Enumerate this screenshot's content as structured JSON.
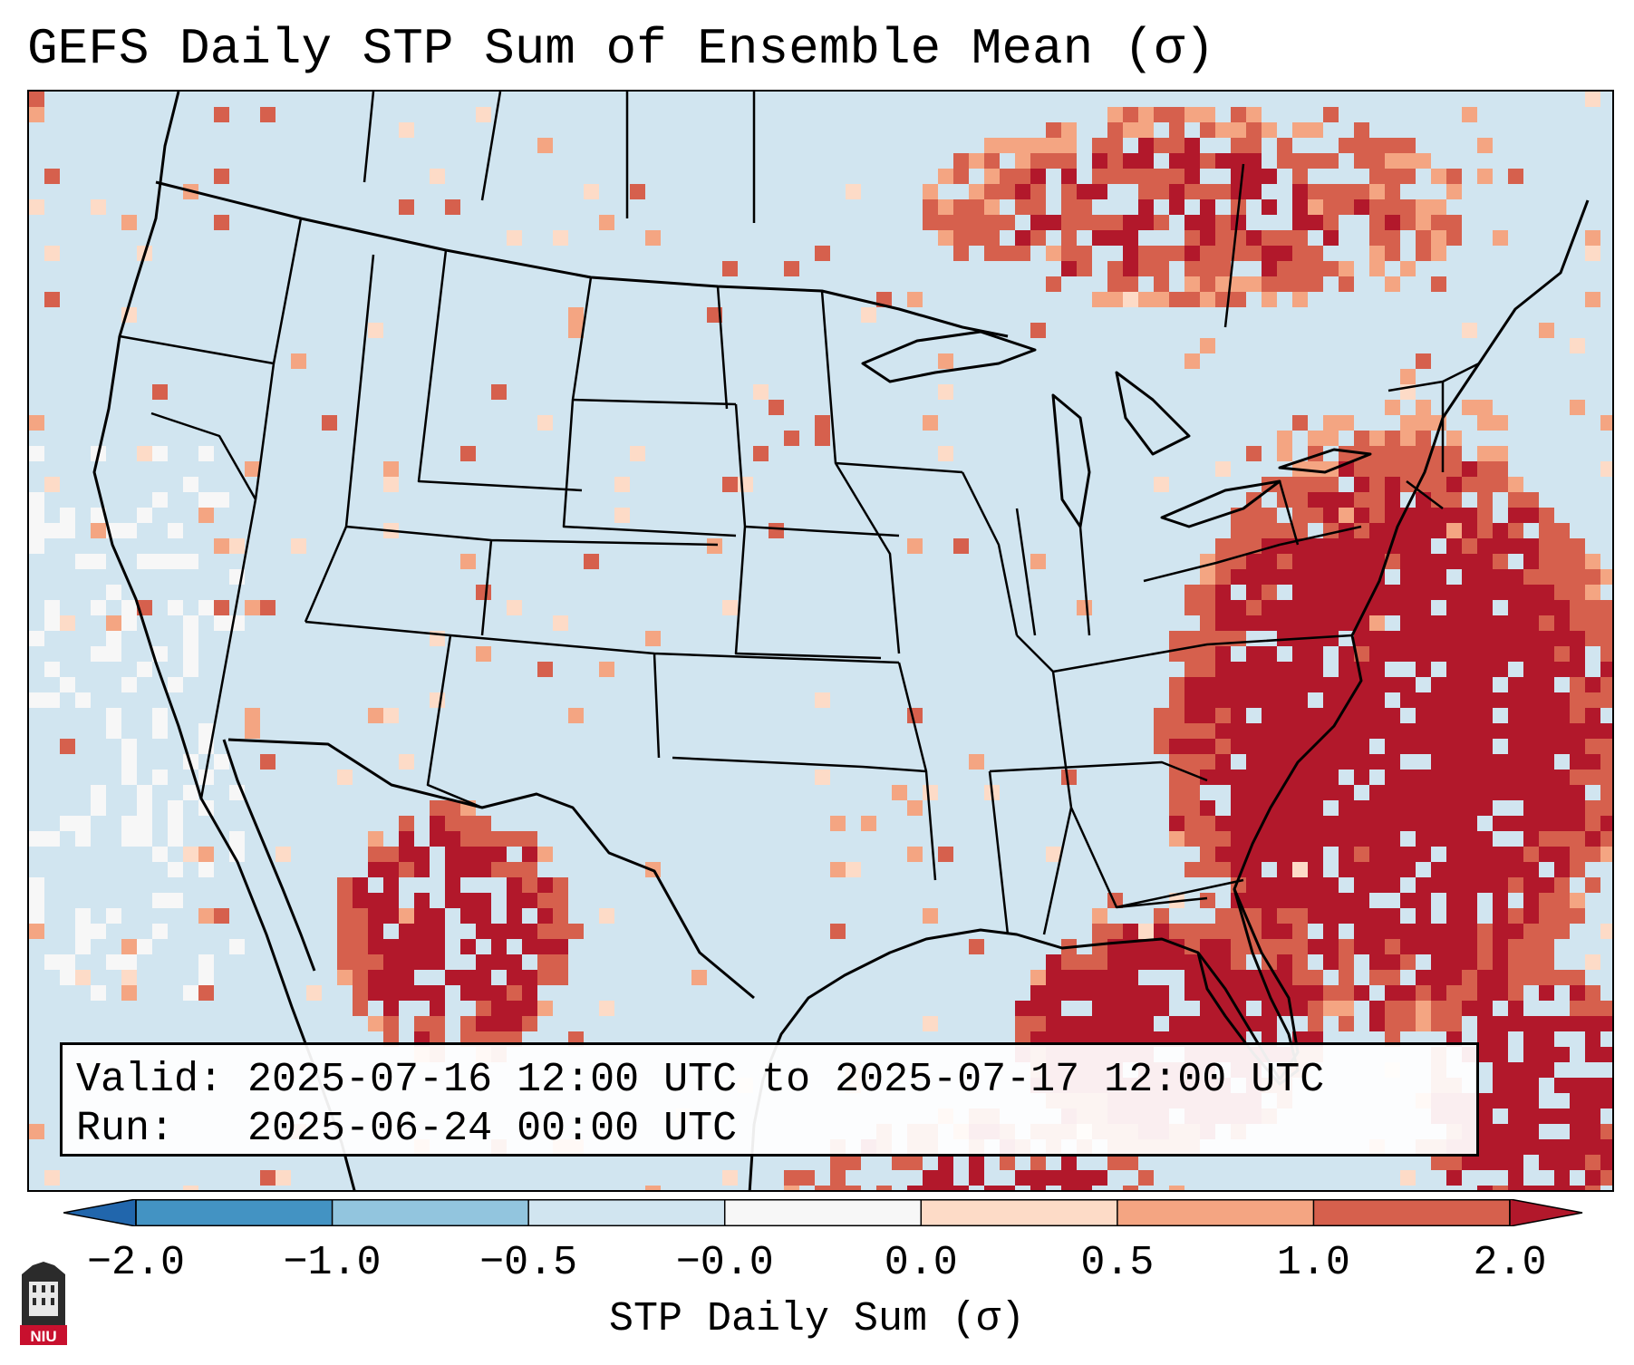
{
  "title": "GEFS Daily STP Sum of Ensemble Mean (σ)",
  "info": {
    "valid_line": "Valid: 2025-07-16 12:00 UTC to 2025-07-17 12:00 UTC",
    "run_line": "Run:   2025-06-24 00:00 UTC"
  },
  "colorbar": {
    "label": "STP Daily Sum (σ)",
    "ticks": [
      "−2.0",
      "−1.0",
      "−0.5",
      "−0.0",
      "0.0",
      "0.5",
      "1.0",
      "2.0"
    ],
    "colors": [
      "#4393c3",
      "#92c5de",
      "#d1e5f0",
      "#f7f7f7",
      "#fddbc7",
      "#f4a582",
      "#d6604d"
    ],
    "extend_low_color": "#2166ac",
    "extend_high_color": "#b2182b"
  },
  "map": {
    "background_color": "#d1e5f0",
    "region": "Continental United States, northern Mexico, Gulf of Mexico, western Atlantic"
  },
  "logo": {
    "text": "NIU",
    "color": "#c8102e"
  }
}
